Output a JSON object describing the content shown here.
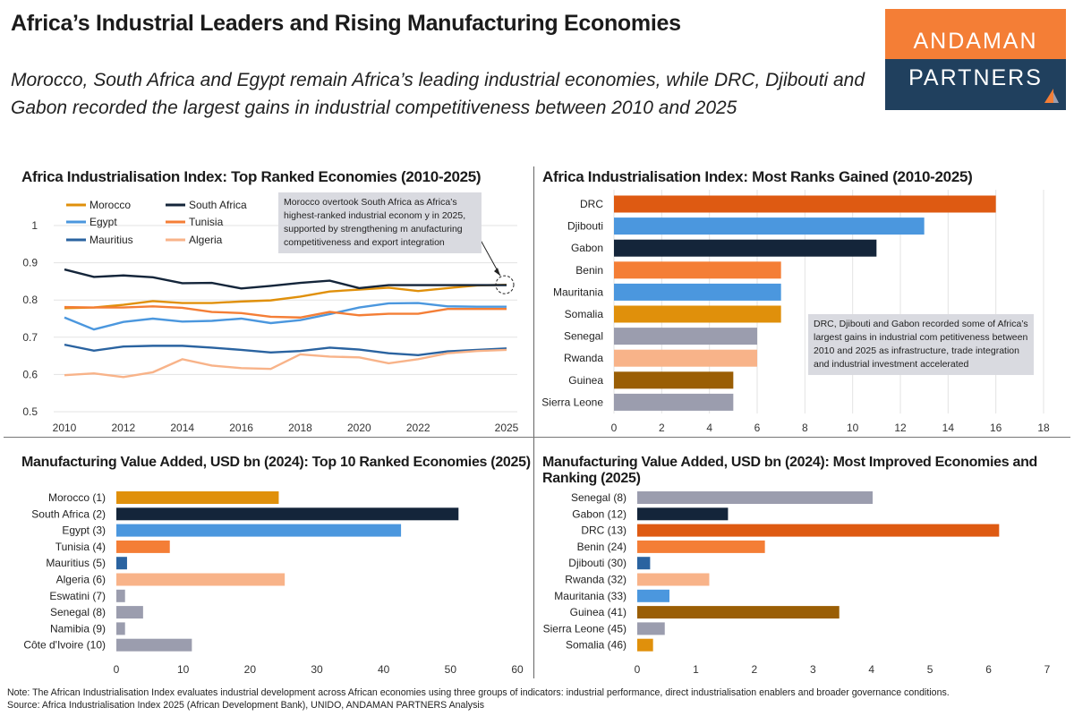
{
  "header": {
    "title": "Africa’s Industrial Leaders and Rising Manufacturing Economies",
    "subtitle": "Morocco, South Africa and Egypt remain Africa’s leading industrial economies, while DRC, Djibouti and Gabon recorded the largest gains in industrial competitiveness between 2010 and 2025",
    "logo_line1": "ANDAMAN",
    "logo_line2": "PARTNERS"
  },
  "colors": {
    "orange_logo": "#f47e36",
    "navy_logo": "#20405e"
  },
  "chart_data": [
    {
      "type": "line",
      "title": "Africa Industrialisation Index: Top Ranked Economies (2010-2025)",
      "x": [
        2010,
        2011,
        2012,
        2013,
        2014,
        2015,
        2016,
        2017,
        2018,
        2019,
        2020,
        2021,
        2022,
        2023,
        2024,
        2025
      ],
      "xticks": [
        "2010",
        "2012",
        "2014",
        "2016",
        "2018",
        "2020",
        "2022",
        "2025"
      ],
      "yticks": [
        "0.5",
        "0.6",
        "0.7",
        "0.8",
        "0.9",
        "1"
      ],
      "ylim": [
        0.5,
        1.05
      ],
      "legend": "top-left",
      "series": [
        {
          "name": "Morocco",
          "color": "#e0900b",
          "values": [
            0.778,
            0.78,
            0.787,
            0.797,
            0.792,
            0.792,
            0.796,
            0.799,
            0.809,
            0.823,
            0.828,
            0.833,
            0.824,
            0.832,
            0.839,
            0.841
          ]
        },
        {
          "name": "South Africa",
          "color": "#14253a",
          "values": [
            0.882,
            0.862,
            0.866,
            0.861,
            0.845,
            0.846,
            0.831,
            0.838,
            0.846,
            0.852,
            0.832,
            0.84,
            0.84,
            0.84,
            0.84,
            0.84
          ]
        },
        {
          "name": "Egypt",
          "color": "#4b97de",
          "values": [
            0.753,
            0.721,
            0.741,
            0.75,
            0.742,
            0.744,
            0.75,
            0.738,
            0.746,
            0.762,
            0.78,
            0.791,
            0.792,
            0.783,
            0.782,
            0.782
          ]
        },
        {
          "name": "Tunisia",
          "color": "#f47e36",
          "values": [
            0.781,
            0.78,
            0.78,
            0.783,
            0.779,
            0.768,
            0.765,
            0.755,
            0.753,
            0.768,
            0.759,
            0.763,
            0.763,
            0.776,
            0.776,
            0.776
          ]
        },
        {
          "name": "Mauritius",
          "color": "#2a63a0",
          "values": [
            0.68,
            0.664,
            0.675,
            0.677,
            0.677,
            0.672,
            0.666,
            0.659,
            0.663,
            0.672,
            0.667,
            0.657,
            0.652,
            0.662,
            0.666,
            0.67
          ]
        },
        {
          "name": "Algeria",
          "color": "#f8b389",
          "values": [
            0.598,
            0.603,
            0.593,
            0.606,
            0.641,
            0.624,
            0.617,
            0.615,
            0.654,
            0.648,
            0.646,
            0.63,
            0.641,
            0.657,
            0.663,
            0.666
          ]
        }
      ],
      "annotation": "Morocco overtook South Africa as Africa’s highest-ranked industrial econom y in 2025, supported by strengthening m anufacturing competitiveness and export integration"
    },
    {
      "type": "bar",
      "orientation": "horizontal",
      "title": "Africa Industrialisation Index: Most Ranks Gained (2010-2025)",
      "categories": [
        "DRC",
        "Djibouti",
        "Gabon",
        "Benin",
        "Mauritania",
        "Somalia",
        "Senegal",
        "Rwanda",
        "Guinea",
        "Sierra Leone"
      ],
      "values": [
        16,
        13,
        11,
        7,
        7,
        7,
        6,
        6,
        5,
        5
      ],
      "colors": [
        "#de5a12",
        "#4b97de",
        "#14253a",
        "#f47e36",
        "#4b97de",
        "#e0900b",
        "#9b9dae",
        "#f8b389",
        "#9a5e05",
        "#9b9dae"
      ],
      "xticks": [
        "0",
        "2",
        "4",
        "6",
        "8",
        "10",
        "12",
        "14",
        "16",
        "18"
      ],
      "xlim": [
        0,
        18
      ],
      "annotation": "DRC, Djibouti and Gabon recorded some of Africa’s largest gains in industrial com petitiveness between 2010 and 2025 as infrastructure, trade integration and industrial investment accelerated"
    },
    {
      "type": "bar",
      "orientation": "horizontal",
      "title": "Manufacturing Value Added, USD bn (2024): Top 10 Ranked Economies (2025)",
      "categories": [
        "Morocco (1)",
        "South Africa (2)",
        "Egypt (3)",
        "Tunisia (4)",
        "Mauritius (5)",
        "Algeria (6)",
        "Eswatini (7)",
        "Senegal (8)",
        "Namibia (9)",
        "Côte d'Ivoire (10)"
      ],
      "values": [
        24.3,
        51.2,
        42.6,
        8.0,
        1.6,
        25.2,
        1.3,
        4.0,
        1.3,
        11.3
      ],
      "colors": [
        "#e0900b",
        "#14253a",
        "#4b97de",
        "#f47e36",
        "#2a63a0",
        "#f8b389",
        "#9b9dae",
        "#9b9dae",
        "#9b9dae",
        "#9b9dae"
      ],
      "xticks": [
        "0",
        "10",
        "20",
        "30",
        "40",
        "50",
        "60"
      ],
      "xlim": [
        0,
        60
      ]
    },
    {
      "type": "bar",
      "orientation": "horizontal",
      "title": "Manufacturing Value Added, USD bn (2024): Most Improved Economies and Ranking (2025)",
      "categories": [
        "Senegal (8)",
        "Gabon (12)",
        "DRC (13)",
        "Benin (24)",
        "Djibouti (30)",
        "Rwanda (32)",
        "Mauritania (33)",
        "Guinea (41)",
        "Sierra Leone (45)",
        "Somalia (46)"
      ],
      "values": [
        4.02,
        1.55,
        6.18,
        2.18,
        0.22,
        1.23,
        0.55,
        3.45,
        0.47,
        0.27
      ],
      "colors": [
        "#9b9dae",
        "#14253a",
        "#de5a12",
        "#f47e36",
        "#2a63a0",
        "#f8b389",
        "#4b97de",
        "#9a5e05",
        "#9b9dae",
        "#e0900b"
      ],
      "xticks": [
        "0",
        "1",
        "2",
        "3",
        "4",
        "5",
        "6",
        "7"
      ],
      "xlim": [
        0,
        7
      ]
    }
  ],
  "footer": {
    "note": "Note: The African Industrialisation Index evaluates industrial development across African economies using three groups of indicators: industrial performance, direct industrialisation enablers and broader governance conditions.",
    "source": "Source: Africa Industrialisation Index 2025 (African Development Bank), UNIDO, ANDAMAN PARTNERS Analysis"
  }
}
